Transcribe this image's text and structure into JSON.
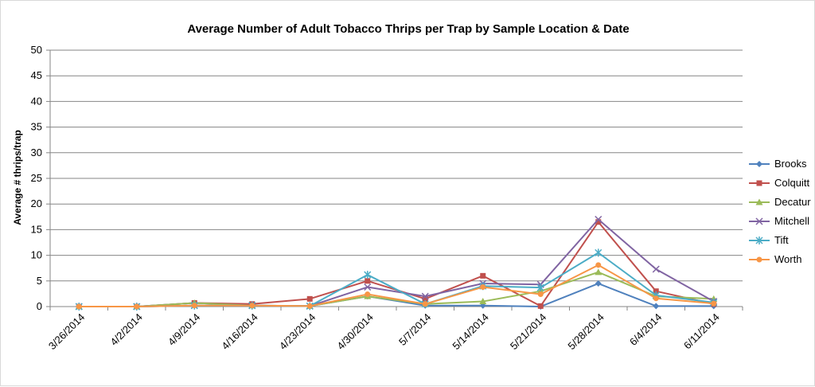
{
  "chart_data": {
    "type": "line",
    "title": "Average Number of Adult Tobacco Thrips per Trap by Sample Location & Date",
    "xlabel": "",
    "ylabel": "Average # thrips/trap",
    "ylim": [
      0,
      50
    ],
    "yticks": [
      0,
      5,
      10,
      15,
      20,
      25,
      30,
      35,
      40,
      45,
      50
    ],
    "grid": "horizontal",
    "legend": "right",
    "categories": [
      "3/26/2014",
      "4/2/2014",
      "4/9/2014",
      "4/16/2014",
      "4/23/2014",
      "4/30/2014",
      "5/7/2014",
      "5/14/2014",
      "5/21/2014",
      "5/28/2014",
      "6/4/2014",
      "6/11/2014"
    ],
    "series": [
      {
        "name": "Brooks",
        "color": "#4f81bd",
        "marker": "diamond",
        "values": [
          0,
          0,
          0.7,
          0.2,
          0.1,
          2.0,
          0.2,
          0.2,
          0.0,
          4.5,
          0.1,
          0.1
        ]
      },
      {
        "name": "Colquitt",
        "color": "#c0504d",
        "marker": "square",
        "values": [
          0,
          0,
          0.7,
          0.5,
          1.5,
          5.0,
          1.5,
          6.0,
          0.1,
          16.5,
          3.0,
          0.5
        ]
      },
      {
        "name": "Decatur",
        "color": "#9bbb59",
        "marker": "triangle",
        "values": [
          0,
          0,
          0.7,
          0.2,
          0.1,
          2.0,
          0.5,
          1.0,
          3.0,
          6.7,
          2.0,
          1.5
        ]
      },
      {
        "name": "Mitchell",
        "color": "#8064a2",
        "marker": "x",
        "values": [
          0,
          0,
          0.2,
          0.2,
          0.1,
          3.8,
          2.0,
          4.5,
          4.3,
          17.0,
          7.3,
          1.0
        ]
      },
      {
        "name": "Tift",
        "color": "#4bacc6",
        "marker": "star",
        "values": [
          0,
          0,
          0.2,
          0.2,
          0.1,
          6.2,
          0.5,
          4.0,
          3.7,
          10.5,
          2.2,
          0.8
        ]
      },
      {
        "name": "Worth",
        "color": "#f79646",
        "marker": "circle",
        "values": [
          0,
          0,
          0.2,
          0.2,
          0.1,
          2.4,
          0.5,
          3.8,
          2.4,
          8.1,
          1.6,
          0.6
        ]
      }
    ]
  }
}
